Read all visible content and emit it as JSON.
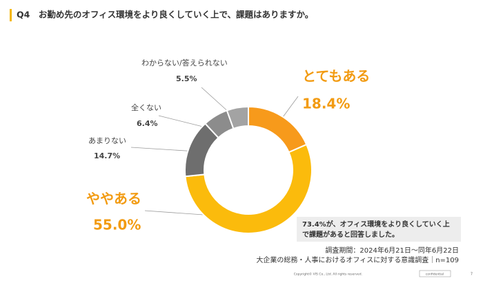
{
  "header": {
    "title": "Q4　お勤め先のオフィス環境をより良くしていく上で、課題はありますか。"
  },
  "chart_data": {
    "type": "pie",
    "categories": [
      "とてもある",
      "ややある",
      "あまりない",
      "全くない",
      "わからない/答えられない"
    ],
    "values": [
      18.4,
      55.0,
      14.7,
      6.4,
      5.5
    ],
    "value_labels": [
      "18.4%",
      "55.0%",
      "14.7%",
      "6.4%",
      "5.5%"
    ],
    "colors": [
      "#f79a1b",
      "#fbbb0c",
      "#6e6e6e",
      "#8c8c8c",
      "#a3a3a3"
    ]
  },
  "note": {
    "lines": [
      "73.4%が、オフィス環境をより良くしていく上",
      "で課題があると回答しました。"
    ]
  },
  "source": {
    "lines": [
      "調査期間：2024年6月21日〜同年6月22日",
      "大企業の総務・人事におけるオフィスに対する意識調査｜n=109"
    ]
  },
  "footer": {
    "copyright": "Copyright© VIS Co., Ltd. All rights reserved.",
    "tag": "confidential",
    "page": "7"
  }
}
